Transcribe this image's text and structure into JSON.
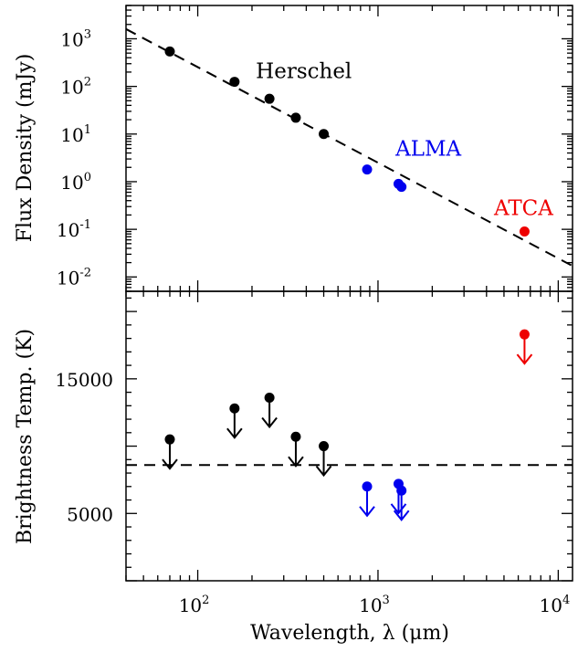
{
  "chart_data": [
    {
      "type": "scatter",
      "panel": "top",
      "ylabel": "Flux Density (mJy)",
      "xscale": "log",
      "yscale": "log",
      "xlim": [
        40,
        12000
      ],
      "ylim": [
        0.005,
        5000
      ],
      "yticks": [
        {
          "value": 0.01,
          "base": "10",
          "exp": "-2"
        },
        {
          "value": 0.1,
          "base": "10",
          "exp": "-1"
        },
        {
          "value": 1,
          "base": "10",
          "exp": "0"
        },
        {
          "value": 10,
          "base": "10",
          "exp": "1"
        },
        {
          "value": 100,
          "base": "10",
          "exp": "2"
        },
        {
          "value": 1000,
          "base": "10",
          "exp": "3"
        }
      ],
      "series": [
        {
          "name": "Herschel",
          "color": "#000000",
          "points": [
            [
              70,
              540
            ],
            [
              160,
              125
            ],
            [
              250,
              55
            ],
            [
              350,
              22
            ],
            [
              500,
              10
            ]
          ]
        },
        {
          "name": "ALMA",
          "color": "#0000ee",
          "points": [
            [
              870,
              1.8
            ],
            [
              1300,
              0.9
            ],
            [
              1350,
              0.78
            ]
          ]
        },
        {
          "name": "ATCA",
          "color": "#ee0000",
          "points": [
            [
              6500,
              0.09
            ]
          ]
        }
      ],
      "fit_line": {
        "style": "dashed",
        "color": "#000000",
        "points": [
          [
            40,
            1600
          ],
          [
            12000,
            0.017
          ]
        ]
      },
      "annotations": [
        {
          "text": "Herschel",
          "color": "#000000",
          "at": [
            210,
            150
          ]
        },
        {
          "text": "ALMA",
          "color": "#0000ee",
          "at": [
            1250,
            3.5
          ]
        },
        {
          "text": "ATCA",
          "color": "#ee0000",
          "at": [
            4400,
            0.2
          ]
        }
      ]
    },
    {
      "type": "scatter",
      "panel": "bottom",
      "xlabel": "Wavelength, λ (μm)",
      "ylabel": "Brightness Temp. (K)",
      "xscale": "log",
      "xlim": [
        40,
        12000
      ],
      "ylim": [
        0,
        21500
      ],
      "yticks": [
        5000,
        15000
      ],
      "xticks": [
        {
          "value": 100,
          "base": "10",
          "exp": "2"
        },
        {
          "value": 1000,
          "base": "10",
          "exp": "3"
        },
        {
          "value": 10000,
          "base": "10",
          "exp": "4"
        }
      ],
      "upper_limits": true,
      "series": [
        {
          "name": "Herschel",
          "color": "#000000",
          "points": [
            [
              70,
              10500
            ],
            [
              160,
              12800
            ],
            [
              250,
              13600
            ],
            [
              350,
              10700
            ],
            [
              500,
              10000
            ]
          ]
        },
        {
          "name": "ALMA",
          "color": "#0000ee",
          "points": [
            [
              870,
              7000
            ],
            [
              1300,
              7200
            ],
            [
              1350,
              6700
            ]
          ]
        },
        {
          "name": "ATCA",
          "color": "#ee0000",
          "points": [
            [
              6500,
              18300
            ]
          ]
        }
      ],
      "hline": {
        "y": 8600,
        "style": "dashed",
        "color": "#000000"
      }
    }
  ]
}
